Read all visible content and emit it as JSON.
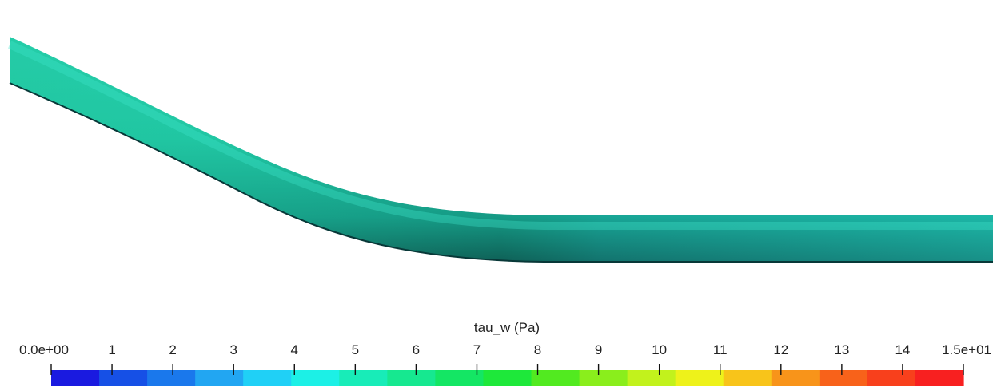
{
  "colorbar": {
    "title": "tau_w (Pa)",
    "range": [
      0,
      15
    ],
    "tick_labels": [
      "0.0e+00",
      "1",
      "2",
      "3",
      "4",
      "5",
      "6",
      "7",
      "8",
      "9",
      "10",
      "11",
      "12",
      "13",
      "14",
      "1.5e+01"
    ],
    "tick_values": [
      0,
      1,
      2,
      3,
      4,
      5,
      6,
      7,
      8,
      9,
      10,
      11,
      12,
      13,
      14,
      15
    ],
    "color_bands": [
      "#1a1ae0",
      "#1650e6",
      "#1a78ec",
      "#22a6f2",
      "#20d0f6",
      "#1cf0e6",
      "#18ecb8",
      "#16e890",
      "#14e664",
      "#1ee83a",
      "#52ea20",
      "#8aee1c",
      "#c2f21c",
      "#eef21a",
      "#f8c41a",
      "#f8941a",
      "#f8621a",
      "#f8401c",
      "#f82020"
    ]
  },
  "pipe": {
    "surface_colors": {
      "top_left": "#21c7a4",
      "top_right": "#23dcc4",
      "mid": "#1faa8e",
      "shadow": "#0e5a55",
      "edge_dark": "#0a3d3c"
    }
  }
}
